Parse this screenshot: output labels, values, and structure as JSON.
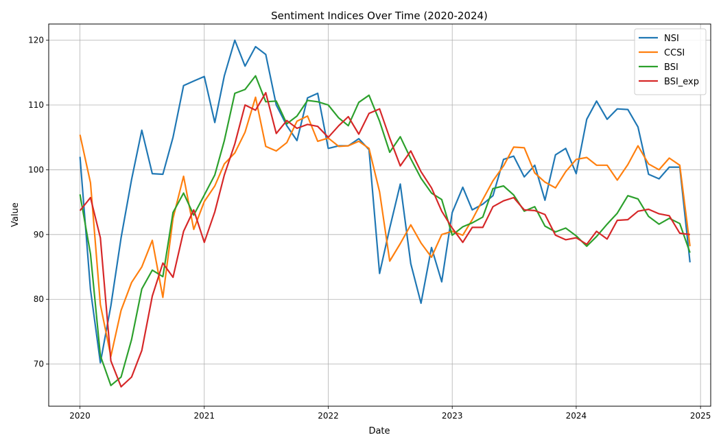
{
  "chart_data": {
    "type": "line",
    "title": "Sentiment Indices Over Time (2020-2024)",
    "xlabel": "Date",
    "ylabel": "Value",
    "xlim": [
      "2019-10-01",
      "2025-01-31"
    ],
    "ylim": [
      63.5,
      122.5
    ],
    "x_ticks": [
      "2020",
      "2021",
      "2022",
      "2023",
      "2024",
      "2025"
    ],
    "y_ticks": [
      70,
      80,
      90,
      100,
      110,
      120
    ],
    "grid": true,
    "legend_position": "top-right",
    "x": [
      "2020-01",
      "2020-02",
      "2020-03",
      "2020-04",
      "2020-05",
      "2020-06",
      "2020-07",
      "2020-08",
      "2020-09",
      "2020-10",
      "2020-11",
      "2020-12",
      "2021-01",
      "2021-02",
      "2021-03",
      "2021-04",
      "2021-05",
      "2021-06",
      "2021-07",
      "2021-08",
      "2021-09",
      "2021-10",
      "2021-11",
      "2021-12",
      "2022-01",
      "2022-02",
      "2022-03",
      "2022-04",
      "2022-05",
      "2022-06",
      "2022-07",
      "2022-08",
      "2022-09",
      "2022-10",
      "2022-11",
      "2022-12",
      "2023-01",
      "2023-02",
      "2023-03",
      "2023-04",
      "2023-05",
      "2023-06",
      "2023-07",
      "2023-08",
      "2023-09",
      "2023-10",
      "2023-11",
      "2023-12",
      "2024-01",
      "2024-02",
      "2024-03",
      "2024-04",
      "2024-05",
      "2024-06",
      "2024-07",
      "2024-08",
      "2024-09",
      "2024-10",
      "2024-11",
      "2024-12"
    ],
    "series": [
      {
        "name": "NSI",
        "color": "#1f77b4",
        "values": [
          102.0,
          81.5,
          70.2,
          79.0,
          89.5,
          98.5,
          106.1,
          99.4,
          99.3,
          105.0,
          113.0,
          113.7,
          114.4,
          107.3,
          114.5,
          120.0,
          116.0,
          119.0,
          117.8,
          110.0,
          106.8,
          104.5,
          111.1,
          111.8,
          103.3,
          103.7,
          103.7,
          104.8,
          103.1,
          84.0,
          91.0,
          97.8,
          85.5,
          79.4,
          88.0,
          82.7,
          93.4,
          97.3,
          93.8,
          94.7,
          96.0,
          101.6,
          102.1,
          98.9,
          100.7,
          95.3,
          102.3,
          103.3,
          99.4,
          107.8,
          110.6,
          107.8,
          109.4,
          109.3,
          106.6,
          99.3,
          98.6,
          100.4,
          100.4,
          85.7
        ]
      },
      {
        "name": "CCSI",
        "color": "#ff7f0e",
        "values": [
          105.4,
          98.0,
          79.2,
          71.2,
          78.3,
          82.6,
          85.0,
          89.1,
          80.3,
          92.5,
          99.0,
          90.8,
          95.1,
          97.5,
          100.9,
          102.6,
          105.8,
          111.2,
          103.6,
          102.9,
          104.2,
          107.5,
          108.3,
          104.4,
          104.9,
          103.6,
          103.7,
          104.4,
          103.3,
          96.6,
          85.9,
          88.6,
          91.5,
          88.7,
          86.5,
          90.0,
          90.5,
          89.9,
          92.3,
          95.4,
          98.3,
          100.6,
          103.5,
          103.4,
          99.5,
          98.1,
          97.2,
          99.7,
          101.6,
          101.9,
          100.7,
          100.7,
          98.4,
          100.8,
          103.7,
          100.9,
          100.0,
          101.8,
          100.7,
          88.2
        ]
      },
      {
        "name": "BSI",
        "color": "#2ca02c",
        "values": [
          96.2,
          87.0,
          71.3,
          66.7,
          68.0,
          73.8,
          81.6,
          84.5,
          83.5,
          93.4,
          96.4,
          93.0,
          96.1,
          99.2,
          104.5,
          111.8,
          112.4,
          114.5,
          110.5,
          110.6,
          107.1,
          108.3,
          110.7,
          110.5,
          110.0,
          108.0,
          106.8,
          110.4,
          111.5,
          107.5,
          102.7,
          105.1,
          101.7,
          98.7,
          96.4,
          95.4,
          89.9,
          91.2,
          91.8,
          92.7,
          97.1,
          97.5,
          96.1,
          93.6,
          94.3,
          91.3,
          90.4,
          91.0,
          89.8,
          88.2,
          89.7,
          91.6,
          93.3,
          96.0,
          95.5,
          92.8,
          91.6,
          92.5,
          91.7,
          87.2
        ]
      },
      {
        "name": "BSI_exp",
        "color": "#d62728",
        "values": [
          93.7,
          95.7,
          89.5,
          70.5,
          66.5,
          68.0,
          72.1,
          80.5,
          85.6,
          83.4,
          90.5,
          93.8,
          88.8,
          93.5,
          99.2,
          104.0,
          110.0,
          109.2,
          111.9,
          105.6,
          107.6,
          106.4,
          107.0,
          106.7,
          105.0,
          106.8,
          108.2,
          105.5,
          108.7,
          109.4,
          104.9,
          100.6,
          102.9,
          99.7,
          97.2,
          93.6,
          91.0,
          88.8,
          91.1,
          91.1,
          94.3,
          95.2,
          95.7,
          93.8,
          93.7,
          93.1,
          89.9,
          89.2,
          89.5,
          88.5,
          90.5,
          89.3,
          92.2,
          92.3,
          93.6,
          93.9,
          93.2,
          92.9,
          90.2,
          90.0
        ]
      }
    ]
  }
}
